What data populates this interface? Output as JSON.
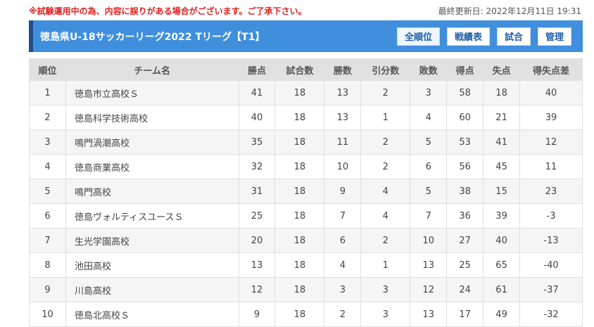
{
  "notice": "※試験運用中の為、内容に誤りがある場合がございます。ご了承下さい。",
  "updated": "最終更新日: 2022年12月11日 19:31",
  "title": "徳島県U-18サッカーリーグ2022 Tリーグ【T1】",
  "nav": {
    "all_rank": "全順位",
    "results": "戦績表",
    "matches": "試合",
    "admin": "管理"
  },
  "columns": [
    "順位",
    "チーム名",
    "勝点",
    "試合数",
    "勝数",
    "引分数",
    "敗数",
    "得点",
    "失点",
    "得失点差"
  ],
  "rows": [
    {
      "rank": "1",
      "team": "徳島市立高校Ｓ",
      "points": "41",
      "played": "18",
      "wins": "13",
      "draws": "2",
      "losses": "3",
      "gf": "58",
      "ga": "18",
      "gd": "40"
    },
    {
      "rank": "2",
      "team": "徳島科学技術高校",
      "points": "40",
      "played": "18",
      "wins": "13",
      "draws": "1",
      "losses": "4",
      "gf": "60",
      "ga": "21",
      "gd": "39"
    },
    {
      "rank": "3",
      "team": "鳴門渦潮高校",
      "points": "35",
      "played": "18",
      "wins": "11",
      "draws": "2",
      "losses": "5",
      "gf": "53",
      "ga": "41",
      "gd": "12"
    },
    {
      "rank": "4",
      "team": "徳島商業高校",
      "points": "32",
      "played": "18",
      "wins": "10",
      "draws": "2",
      "losses": "6",
      "gf": "56",
      "ga": "45",
      "gd": "11"
    },
    {
      "rank": "5",
      "team": "鳴門高校",
      "points": "31",
      "played": "18",
      "wins": "9",
      "draws": "4",
      "losses": "5",
      "gf": "38",
      "ga": "15",
      "gd": "23"
    },
    {
      "rank": "6",
      "team": "徳島ヴォルティスユースＳ",
      "points": "25",
      "played": "18",
      "wins": "7",
      "draws": "4",
      "losses": "7",
      "gf": "36",
      "ga": "39",
      "gd": "-3"
    },
    {
      "rank": "7",
      "team": "生光学園高校",
      "points": "20",
      "played": "18",
      "wins": "6",
      "draws": "2",
      "losses": "10",
      "gf": "27",
      "ga": "40",
      "gd": "-13"
    },
    {
      "rank": "8",
      "team": "池田高校",
      "points": "13",
      "played": "18",
      "wins": "4",
      "draws": "1",
      "losses": "13",
      "gf": "25",
      "ga": "65",
      "gd": "-40"
    },
    {
      "rank": "9",
      "team": "川島高校",
      "points": "12",
      "played": "18",
      "wins": "3",
      "draws": "3",
      "losses": "12",
      "gf": "24",
      "ga": "61",
      "gd": "-37"
    },
    {
      "rank": "10",
      "team": "徳島北高校Ｓ",
      "points": "9",
      "played": "18",
      "wins": "2",
      "draws": "3",
      "losses": "13",
      "gf": "17",
      "ga": "49",
      "gd": "-32"
    }
  ],
  "colors": {
    "header_bar": "#3f8fdd",
    "header_accent": "#1f4f86",
    "notice": "#e02020",
    "table_header": "#e1e1e1"
  }
}
